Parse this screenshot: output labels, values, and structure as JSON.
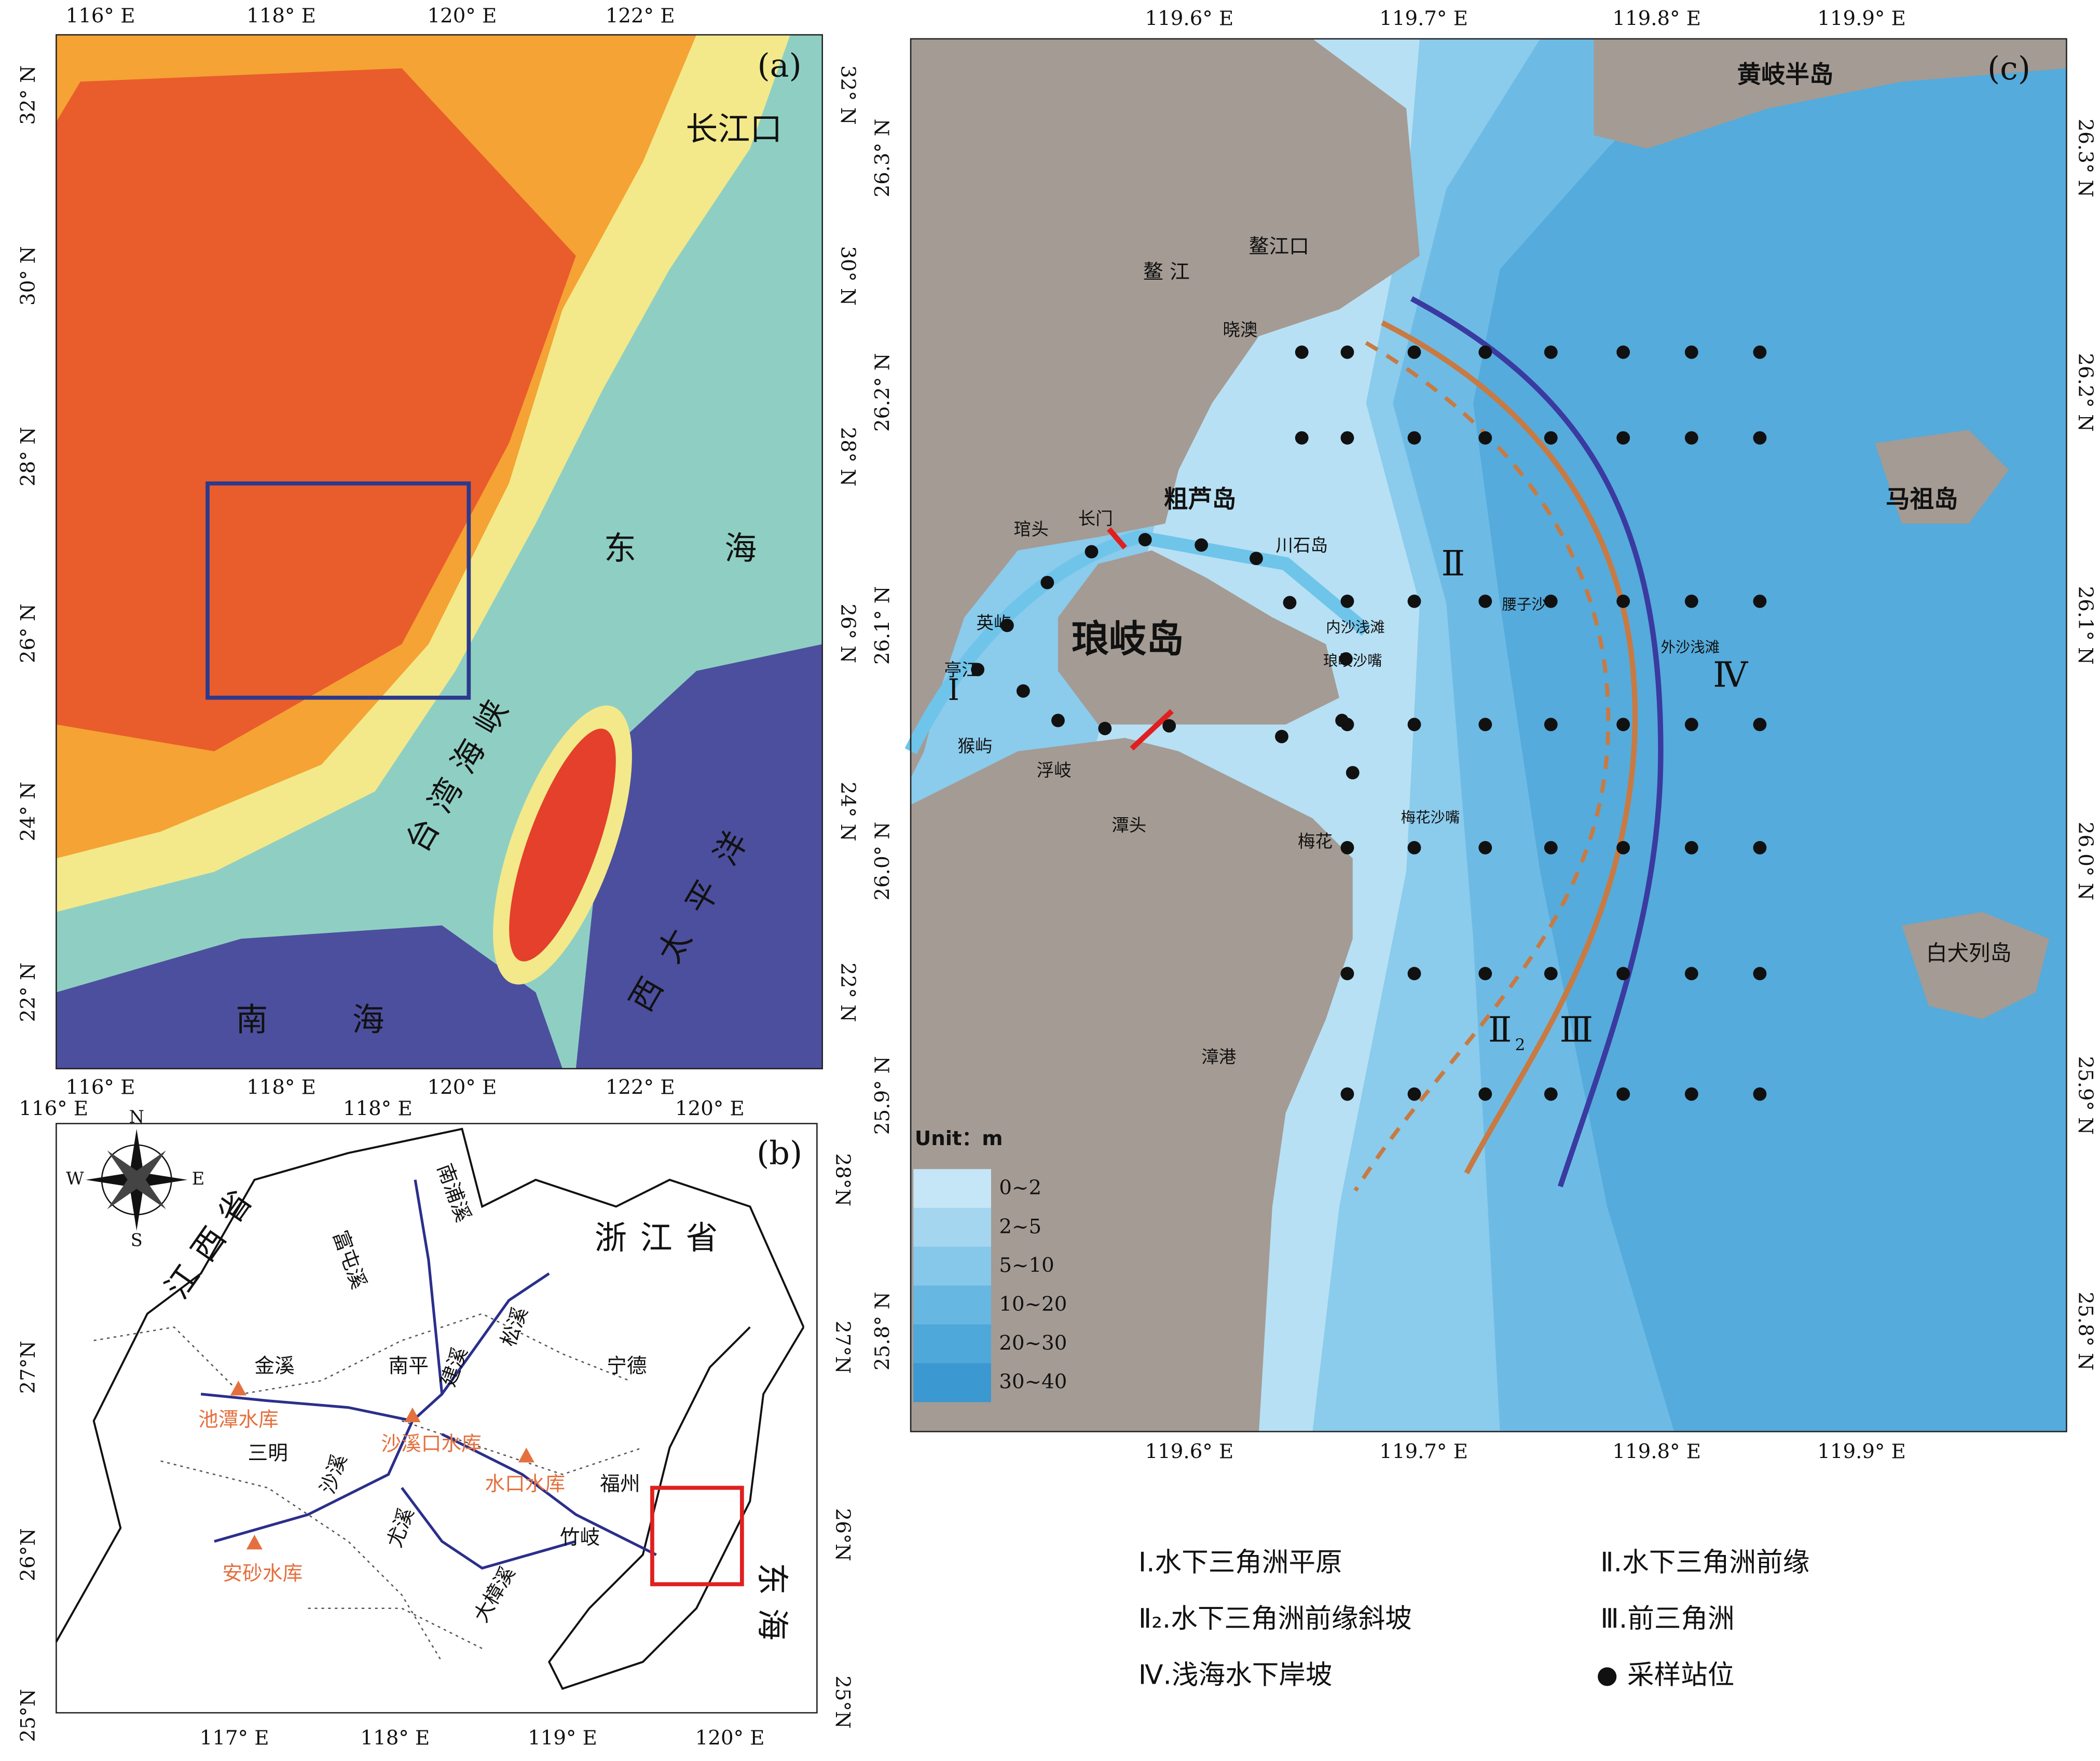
{
  "panel_a": {
    "label": "(a)",
    "x_ticks": [
      "116° E",
      "118° E",
      "120° E",
      "122° E"
    ],
    "y_ticks": [
      "32° N",
      "30° N",
      "28° N",
      "26° N",
      "24° N",
      "22° N"
    ],
    "places": [
      "长江口",
      "东",
      "海",
      "台湾海峡",
      "西太平洋",
      "南",
      "海"
    ]
  },
  "panel_b": {
    "label": "(b)",
    "x_ticks_top": [
      "116° E",
      "118° E",
      "120° E"
    ],
    "x_ticks_bottom": [
      "117° E",
      "118° E",
      "119° E",
      "120° E"
    ],
    "y_ticks_left": [
      "27°N",
      "26°N",
      "25°N"
    ],
    "y_ticks_right": [
      "28°N",
      "27°N",
      "26°N",
      "25°N"
    ],
    "compass": [
      "N",
      "S",
      "W",
      "E"
    ],
    "places": [
      "江西省",
      "浙江省",
      "宁德",
      "南平",
      "三明",
      "福州",
      "东海",
      "竹岐"
    ],
    "rivers": [
      "金溪",
      "富屯溪",
      "南浦溪",
      "建溪",
      "松溪",
      "沙溪",
      "尤溪",
      "大樟溪"
    ],
    "reservoirs": [
      "池潭水库",
      "沙溪口水库",
      "水口水库",
      "安砂水库"
    ]
  },
  "panel_c": {
    "label": "(c)",
    "x_ticks": [
      "119.6° E",
      "119.7° E",
      "119.8° E",
      "119.9° E"
    ],
    "y_ticks": [
      "26.3° N",
      "26.2° N",
      "26.1° N",
      "26.0° N",
      "25.9° N",
      "25.8° N"
    ],
    "places": [
      "黄岐半岛",
      "鳌  江",
      "鳌江口",
      "晓澳",
      "粗芦岛",
      "川石岛",
      "琯头",
      "长门",
      "英屿",
      "亭江",
      "琅岐岛",
      "猴屿",
      "浮岐",
      "潭头",
      "梅花",
      "漳港",
      "马祖岛",
      "白犬列岛",
      "内沙浅滩",
      "腰子沙",
      "外沙浅滩",
      "琅岐沙嘴",
      "梅花沙嘴"
    ],
    "zones": [
      "Ⅰ",
      "Ⅱ",
      "Ⅱ",
      "2",
      "Ⅲ",
      "Ⅳ"
    ],
    "legend": {
      "title": "Unit：m",
      "classes": [
        "0~2",
        "2~5",
        "5~10",
        "10~20",
        "20~30",
        "30~40"
      ]
    }
  },
  "legend_items": [
    "Ⅰ.水下三角洲平原",
    "Ⅱ.水下三角洲前缘",
    "Ⅱ₂.水下三角洲前缘斜坡",
    "Ⅲ.前三角洲",
    "Ⅳ.浅海水下岸坡",
    "采样站位"
  ]
}
